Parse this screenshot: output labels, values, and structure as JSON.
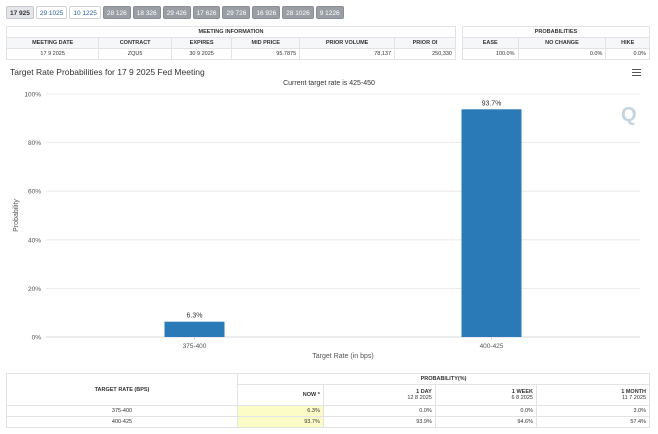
{
  "tabs": [
    "17 925",
    "29 1025",
    "10 1225",
    "28 126",
    "18 326",
    "29 426",
    "17 626",
    "29 726",
    "16 926",
    "28 1026",
    "9 1226"
  ],
  "meeting_info": {
    "title": "MEETING INFORMATION",
    "headers": [
      "MEETING DATE",
      "CONTRACT",
      "EXPIRES",
      "MID PRICE",
      "PRIOR VOLUME",
      "PRIOR OI"
    ],
    "row": [
      "17 9 2025",
      "ZQU5",
      "30 9 2025",
      "95.7875",
      "78,137",
      "250,330"
    ]
  },
  "probabilities": {
    "title": "PROBABILITIES",
    "headers": [
      "EASE",
      "NO CHANGE",
      "HIKE"
    ],
    "row": [
      "100.0%",
      "0.0%",
      "0.0%"
    ]
  },
  "chart": {
    "title": "Target Rate Probabilities for 17 9 2025 Fed Meeting",
    "subtitle": "Current target rate is 425-450",
    "watermark": "Q",
    "menu_icon": "hamburger-menu-icon"
  },
  "chart_data": {
    "type": "bar",
    "categories": [
      "375-400",
      "400-425"
    ],
    "values": [
      6.3,
      93.7
    ],
    "value_labels": [
      "6.3%",
      "93.7%"
    ],
    "title": "Target Rate Probabilities for 17 9 2025 Fed Meeting",
    "subtitle": "Current target rate is 425-450",
    "xlabel": "Target Rate (in bps)",
    "ylabel": "Probability",
    "ylim": [
      0,
      100
    ],
    "yticks": [
      0,
      20,
      40,
      60,
      80,
      100
    ],
    "ytick_labels": [
      "0%",
      "20%",
      "40%",
      "60%",
      "80%",
      "100%"
    ],
    "bar_color": "#2a7ab8",
    "grid": true
  },
  "target_table": {
    "col1": "TARGET RATE (BPS)",
    "group": "PROBABILITY(%)",
    "now": "NOW *",
    "day_title": "1 DAY",
    "day_date": "12 8 2025",
    "week_title": "1 WEEK",
    "week_date": "6 8 2025",
    "month_title": "1 MONTH",
    "month_date": "11 7 2025",
    "rows": [
      [
        "375-400",
        "6.3%",
        "0.0%",
        "0.0%",
        "3.0%"
      ],
      [
        "400-425",
        "93.7%",
        "93.9%",
        "94.6%",
        "57.4%"
      ]
    ]
  }
}
